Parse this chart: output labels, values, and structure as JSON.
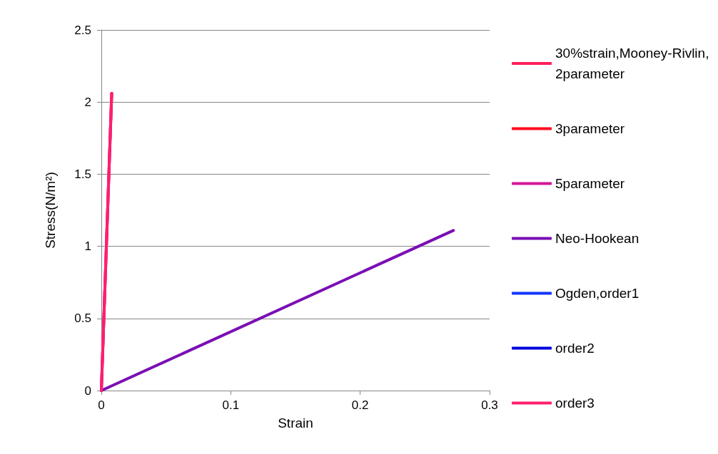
{
  "chart_data": {
    "type": "line",
    "xlabel": "Strain",
    "ylabel": "Stress(N/m²)",
    "xlim": [
      0,
      0.3
    ],
    "xticks": [
      0,
      0.1,
      0.2,
      0.3
    ],
    "ylim": [
      0,
      2.5
    ],
    "yticks": [
      0,
      0.5,
      1,
      1.5,
      2,
      2.5
    ],
    "grid": "y",
    "legend": "right",
    "marker": "none",
    "line_style": "solid",
    "series": [
      {
        "name": "30%strain,Mooney-Rivlin,2parameter",
        "color": "#ff1f5b",
        "x": [
          0,
          0.008
        ],
        "values": [
          0,
          2.06
        ]
      },
      {
        "name": "3parameter",
        "color": "#ff0d1f"
      },
      {
        "name": "5parameter",
        "color": "#d4169a",
        "x": [
          0,
          0.008
        ],
        "values": [
          0,
          2.06
        ]
      },
      {
        "name": "Neo-Hookean",
        "color": "#7a0fb5",
        "x": [
          0,
          0.272
        ],
        "values": [
          0,
          1.11
        ]
      },
      {
        "name": "Ogden,order1",
        "color": "#1536ff"
      },
      {
        "name": "order2",
        "color": "#0000e0"
      },
      {
        "name": "order3",
        "color": "#ff1f6e",
        "x": [
          0,
          0.008
        ],
        "values": [
          0,
          2.06
        ]
      }
    ]
  }
}
